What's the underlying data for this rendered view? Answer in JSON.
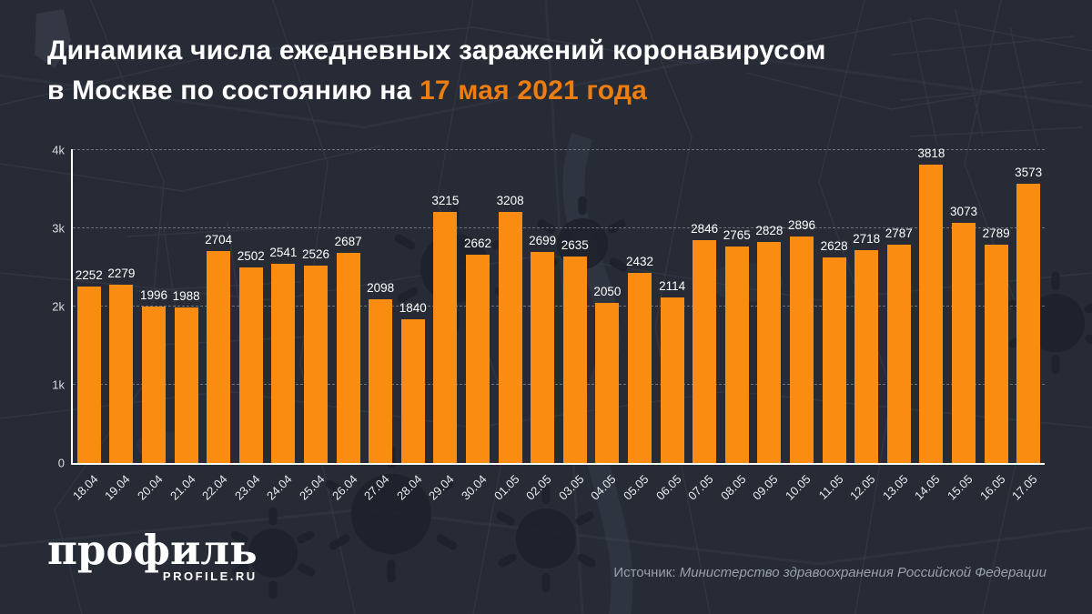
{
  "title": {
    "line1": "Динамика числа ежедневных заражений коронавирусом",
    "line2_prefix": "в Москве по состоянию на ",
    "line2_accent": "17 мая 2021 года"
  },
  "chart_data": {
    "type": "bar",
    "title": "Динамика числа ежедневных заражений коронавирусом в Москве по состоянию на 17 мая 2021 года",
    "categories": [
      "18.04",
      "19.04",
      "20.04",
      "21.04",
      "22.04",
      "23.04",
      "24.04",
      "25.04",
      "26.04",
      "27.04",
      "28.04",
      "29.04",
      "30.04",
      "01.05",
      "02.05",
      "03.05",
      "04.05",
      "05.05",
      "06.05",
      "07.05",
      "08.05",
      "09.05",
      "10.05",
      "11.05",
      "12.05",
      "13.05",
      "14.05",
      "15.05",
      "16.05",
      "17.05"
    ],
    "values": [
      2252,
      2279,
      1996,
      1988,
      2704,
      2502,
      2541,
      2526,
      2687,
      2098,
      1840,
      3215,
      2662,
      3208,
      2699,
      2635,
      2050,
      2432,
      2114,
      2846,
      2765,
      2828,
      2896,
      2628,
      2718,
      2787,
      3818,
      3073,
      2789,
      3573
    ],
    "xlabel": "",
    "ylabel": "",
    "ylim": [
      0,
      4000
    ],
    "ytick_values": [
      0,
      1000,
      2000,
      3000,
      4000
    ],
    "ytick_labels": [
      "0",
      "1k",
      "2k",
      "3k",
      "4k"
    ],
    "grid": true,
    "legend_position": "none",
    "bar_color": "#fa8c11"
  },
  "branding": {
    "logo_main": "профиль",
    "logo_sub": "PROFILE.RU"
  },
  "source": {
    "prefix": "Источник: ",
    "name": "Министерство здравоохранения Российской Федерации"
  },
  "colors": {
    "background": "#262b35",
    "bar": "#fa8c11",
    "title_accent": "#ed7d0f",
    "axis": "#ffffff",
    "grid": "#a8aeb9",
    "value_label": "#ffffff",
    "tick_label": "#d9dce1",
    "source_text": "#9aa1ab"
  }
}
